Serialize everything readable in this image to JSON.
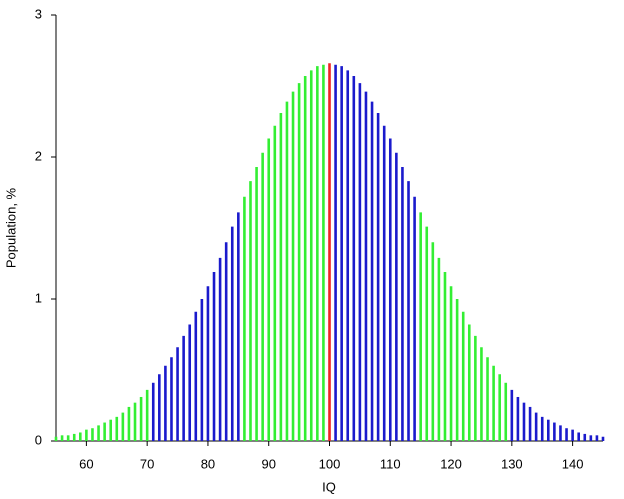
{
  "chart_data": {
    "type": "bar",
    "x_label": "IQ",
    "y_label": "Population, %",
    "xlim": [
      55,
      145
    ],
    "ylim": [
      0,
      3
    ],
    "xticks": [
      60,
      70,
      80,
      90,
      100,
      110,
      120,
      130,
      140
    ],
    "yticks": [
      0,
      1,
      2,
      3
    ],
    "series": [
      {
        "color": "#33ee33",
        "x": [
          55,
          56,
          57,
          58,
          59,
          60,
          61,
          62,
          63,
          64,
          65,
          66,
          67,
          68,
          69,
          70
        ],
        "values": [
          0.03,
          0.04,
          0.04,
          0.05,
          0.06,
          0.08,
          0.09,
          0.11,
          0.13,
          0.15,
          0.17,
          0.2,
          0.24,
          0.27,
          0.31,
          0.36
        ]
      },
      {
        "color": "#1a1acc",
        "x": [
          71,
          72,
          73,
          74,
          75,
          76,
          77,
          78,
          79,
          80,
          81,
          82,
          83,
          84,
          85
        ],
        "values": [
          0.41,
          0.47,
          0.53,
          0.59,
          0.66,
          0.74,
          0.82,
          0.91,
          1.0,
          1.09,
          1.19,
          1.29,
          1.4,
          1.51,
          1.61
        ]
      },
      {
        "color": "#33ee33",
        "x": [
          86,
          87,
          88,
          89,
          90,
          91,
          92,
          93,
          94,
          95,
          96,
          97,
          98,
          99
        ],
        "values": [
          1.72,
          1.83,
          1.93,
          2.03,
          2.13,
          2.22,
          2.31,
          2.39,
          2.46,
          2.52,
          2.57,
          2.61,
          2.64,
          2.65
        ]
      },
      {
        "color": "#ee2222",
        "x": [
          100
        ],
        "values": [
          2.66
        ]
      },
      {
        "color": "#1a1acc",
        "x": [
          101,
          102,
          103,
          104,
          105,
          106,
          107,
          108,
          109,
          110,
          111,
          112,
          113,
          114
        ],
        "values": [
          2.65,
          2.64,
          2.61,
          2.57,
          2.52,
          2.46,
          2.39,
          2.31,
          2.22,
          2.13,
          2.03,
          1.93,
          1.83,
          1.72
        ]
      },
      {
        "color": "#33ee33",
        "x": [
          115,
          116,
          117,
          118,
          119,
          120,
          121,
          122,
          123,
          124,
          125,
          126,
          127,
          128,
          129
        ],
        "values": [
          1.61,
          1.51,
          1.4,
          1.29,
          1.19,
          1.09,
          1.0,
          0.91,
          0.82,
          0.74,
          0.66,
          0.59,
          0.53,
          0.47,
          0.41
        ]
      },
      {
        "color": "#1a1acc",
        "x": [
          130,
          131,
          132,
          133,
          134,
          135,
          136,
          137,
          138,
          139,
          140,
          141,
          142,
          143,
          144,
          145
        ],
        "values": [
          0.36,
          0.31,
          0.27,
          0.24,
          0.2,
          0.17,
          0.15,
          0.13,
          0.11,
          0.09,
          0.08,
          0.06,
          0.05,
          0.04,
          0.04,
          0.03
        ]
      }
    ]
  }
}
